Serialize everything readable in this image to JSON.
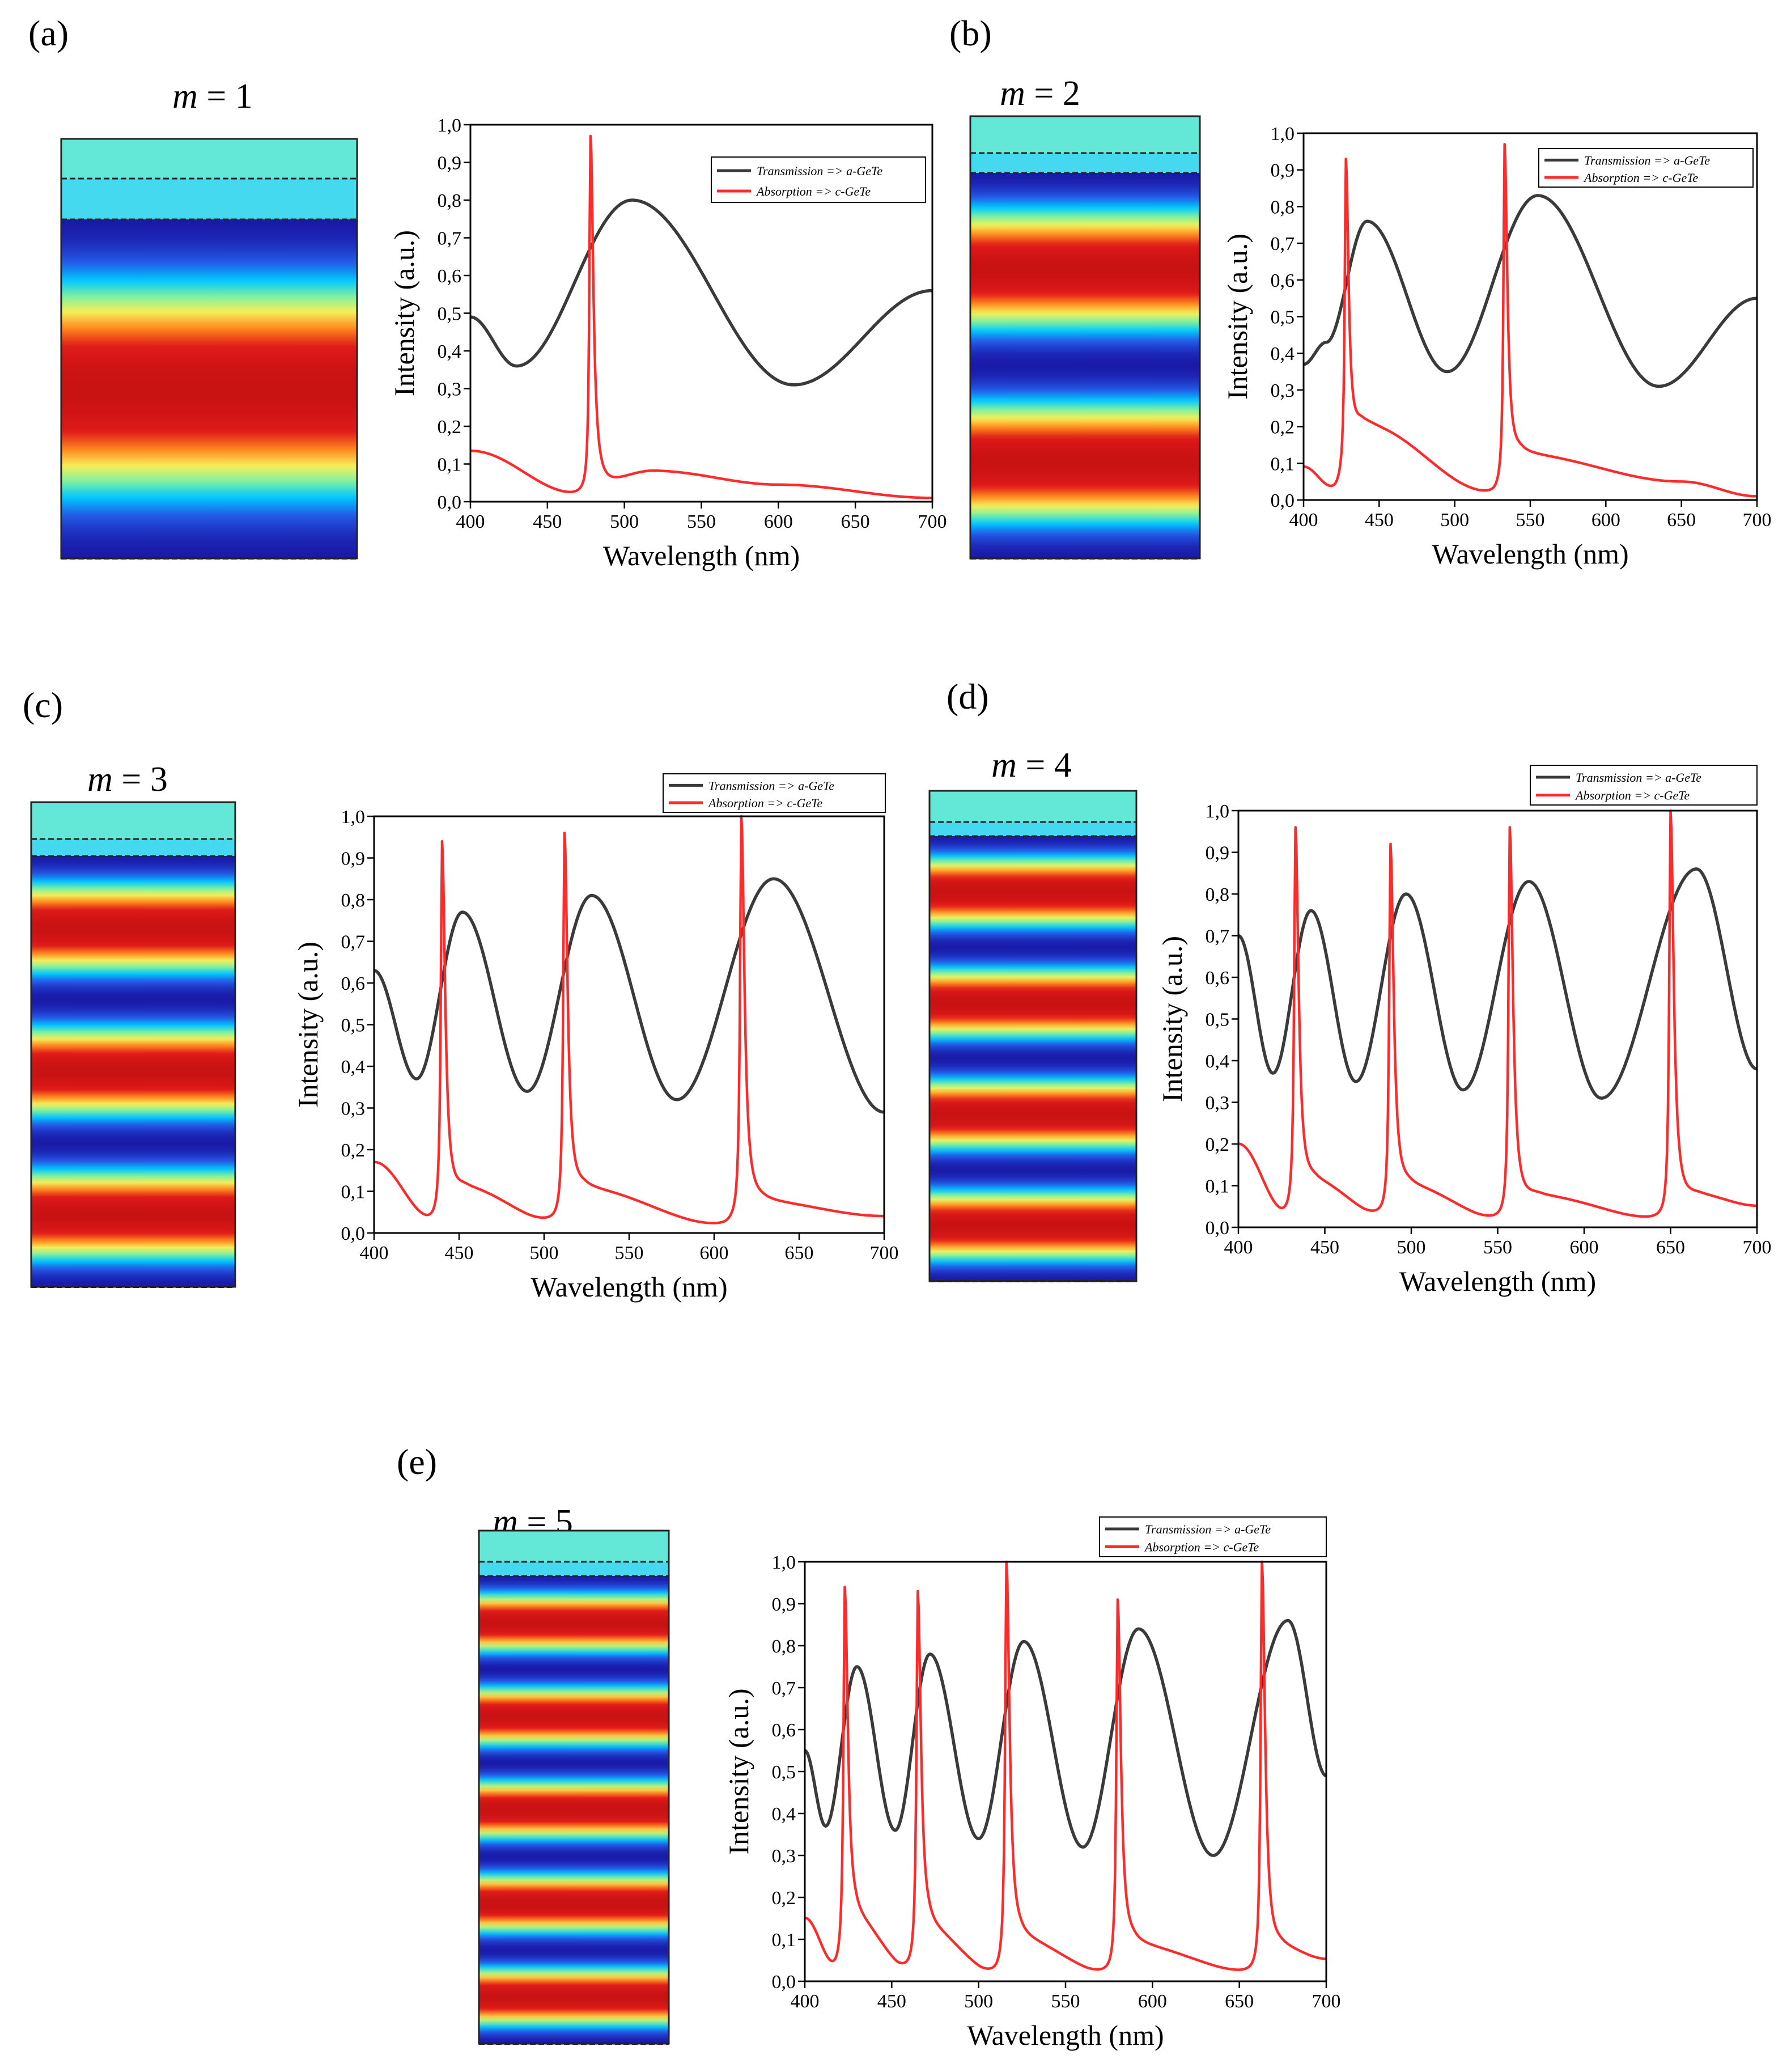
{
  "figure": {
    "description_free": true,
    "field_colormap": [
      "#1a1aa8",
      "#2457e6",
      "#00c8ff",
      "#7ff0a0",
      "#f6f05a",
      "#ff8a1e",
      "#e01a1a",
      "#c91212"
    ]
  },
  "panels": [
    {
      "letter": "(a)",
      "mode_prefix": "m",
      "mode_eq": " = 1"
    },
    {
      "letter": "(b)",
      "mode_prefix": "m",
      "mode_eq": " = 2"
    },
    {
      "letter": "(c)",
      "mode_prefix": "m",
      "mode_eq": " = 3"
    },
    {
      "letter": "(d)",
      "mode_prefix": "m",
      "mode_eq": " = 4"
    },
    {
      "letter": "(e)",
      "mode_prefix": "m",
      "mode_eq": " = 5"
    }
  ],
  "colors": {
    "transmission": "#3a3a3a",
    "absorption": "#ff2a2a",
    "frame": "#333333"
  },
  "chart_data": [
    {
      "type": "line",
      "panel": "(a)",
      "mode": 1,
      "xlabel": "Wavelength (nm)",
      "ylabel": "Intensity (a.u.)",
      "xlim": [
        400,
        700
      ],
      "ylim": [
        0,
        1
      ],
      "xticks": [
        "400",
        "450",
        "500",
        "550",
        "600",
        "650",
        "700"
      ],
      "yticks": [
        "0,0",
        "0,1",
        "0,2",
        "0,3",
        "0,4",
        "0,5",
        "0,6",
        "0,7",
        "0,8",
        "0,9",
        "1,0"
      ],
      "series": [
        {
          "name": "Transmission",
          "legend": "Transmission => a-GeTe",
          "color": "#3a3a3a",
          "base": [
            [
              400,
              0.49
            ],
            [
              430,
              0.36
            ],
            [
              505,
              0.8
            ],
            [
              610,
              0.31
            ],
            [
              700,
              0.56
            ]
          ]
        },
        {
          "name": "Absorption",
          "legend": "Absorption => c-GeTe",
          "color": "#ff2a2a",
          "base": [
            [
              400,
              0.135
            ],
            [
              470,
              0.02
            ],
            [
              520,
              0.08
            ],
            [
              600,
              0.045
            ],
            [
              700,
              0.01
            ]
          ],
          "peaks": [
            [
              478,
              0.97
            ]
          ]
        }
      ]
    },
    {
      "type": "line",
      "panel": "(b)",
      "mode": 2,
      "xlabel": "Wavelength (nm)",
      "ylabel": "Intensity (a.u.)",
      "xlim": [
        400,
        700
      ],
      "ylim": [
        0,
        1
      ],
      "xticks": [
        "400",
        "450",
        "500",
        "550",
        "600",
        "650",
        "700"
      ],
      "yticks": [
        "0,0",
        "0,1",
        "0,2",
        "0,3",
        "0,4",
        "0,5",
        "0,6",
        "0,7",
        "0,8",
        "0,9",
        "1,0"
      ],
      "series": [
        {
          "name": "Transmission",
          "legend": "Transmission => a-GeTe",
          "color": "#3a3a3a",
          "base": [
            [
              400,
              0.37
            ],
            [
              415,
              0.43
            ],
            [
              442,
              0.76
            ],
            [
              495,
              0.35
            ],
            [
              555,
              0.83
            ],
            [
              635,
              0.31
            ],
            [
              700,
              0.55
            ]
          ]
        },
        {
          "name": "Absorption",
          "legend": "Absorption => c-GeTe",
          "color": "#ff2a2a",
          "base": [
            [
              400,
              0.09
            ],
            [
              420,
              0.03
            ],
            [
              440,
              0.2
            ],
            [
              525,
              0.02
            ],
            [
              545,
              0.12
            ],
            [
              650,
              0.05
            ],
            [
              700,
              0.01
            ]
          ],
          "peaks": [
            [
              428,
              0.93
            ],
            [
              533,
              0.97
            ]
          ]
        }
      ]
    },
    {
      "type": "line",
      "panel": "(c)",
      "mode": 3,
      "xlabel": "Wavelength (nm)",
      "ylabel": "Intensity (a.u.)",
      "xlim": [
        400,
        700
      ],
      "ylim": [
        0,
        1
      ],
      "xticks": [
        "400",
        "450",
        "500",
        "550",
        "600",
        "650",
        "700"
      ],
      "yticks": [
        "0,0",
        "0,1",
        "0,2",
        "0,3",
        "0,4",
        "0,5",
        "0,6",
        "0,7",
        "0,8",
        "0,9",
        "1,0"
      ],
      "series": [
        {
          "name": "Transmission",
          "legend": "Transmission => a-GeTe",
          "color": "#3a3a3a",
          "base": [
            [
              400,
              0.63
            ],
            [
              425,
              0.37
            ],
            [
              452,
              0.77
            ],
            [
              490,
              0.34
            ],
            [
              528,
              0.81
            ],
            [
              578,
              0.32
            ],
            [
              635,
              0.85
            ],
            [
              700,
              0.29
            ]
          ]
        },
        {
          "name": "Absorption",
          "legend": "Absorption => c-GeTe",
          "color": "#ff2a2a",
          "base": [
            [
              400,
              0.17
            ],
            [
              435,
              0.03
            ],
            [
              455,
              0.1
            ],
            [
              505,
              0.03
            ],
            [
              525,
              0.1
            ],
            [
              605,
              0.02
            ],
            [
              630,
              0.07
            ],
            [
              700,
              0.04
            ]
          ],
          "peaks": [
            [
              440,
              0.94
            ],
            [
              512,
              0.96
            ],
            [
              616,
              1.0
            ]
          ]
        }
      ]
    },
    {
      "type": "line",
      "panel": "(d)",
      "mode": 4,
      "xlabel": "Wavelength (nm)",
      "ylabel": "Intensity (a.u.)",
      "xlim": [
        400,
        700
      ],
      "ylim": [
        0,
        1
      ],
      "xticks": [
        "400",
        "450",
        "500",
        "550",
        "600",
        "650",
        "700"
      ],
      "yticks": [
        "0,0",
        "0,1",
        "0,2",
        "0,3",
        "0,4",
        "0,5",
        "0,6",
        "0,7",
        "0,8",
        "0,9",
        "1,0"
      ],
      "series": [
        {
          "name": "Transmission",
          "legend": "Transmission => a-GeTe",
          "color": "#3a3a3a",
          "base": [
            [
              400,
              0.7
            ],
            [
              420,
              0.37
            ],
            [
              442,
              0.76
            ],
            [
              468,
              0.35
            ],
            [
              497,
              0.8
            ],
            [
              530,
              0.33
            ],
            [
              568,
              0.83
            ],
            [
              610,
              0.31
            ],
            [
              665,
              0.86
            ],
            [
              700,
              0.38
            ]
          ]
        },
        {
          "name": "Absorption",
          "legend": "Absorption => c-GeTe",
          "color": "#ff2a2a",
          "base": [
            [
              400,
              0.2
            ],
            [
              428,
              0.03
            ],
            [
              445,
              0.1
            ],
            [
              483,
              0.03
            ],
            [
              500,
              0.09
            ],
            [
              552,
              0.02
            ],
            [
              575,
              0.07
            ],
            [
              645,
              0.02
            ],
            [
              668,
              0.07
            ],
            [
              700,
              0.05
            ]
          ],
          "peaks": [
            [
              433,
              0.96
            ],
            [
              488,
              0.92
            ],
            [
              557,
              0.96
            ],
            [
              650,
              1.0
            ]
          ]
        }
      ]
    },
    {
      "type": "line",
      "panel": "(e)",
      "mode": 5,
      "xlabel": "Wavelength (nm)",
      "ylabel": "Intensity (a.u.)",
      "xlim": [
        400,
        700
      ],
      "ylim": [
        0,
        1
      ],
      "xticks": [
        "400",
        "450",
        "500",
        "550",
        "600",
        "650",
        "700"
      ],
      "yticks": [
        "0,0",
        "0,1",
        "0,2",
        "0,3",
        "0,4",
        "0,5",
        "0,6",
        "0,7",
        "0,8",
        "0,9",
        "1,0"
      ],
      "series": [
        {
          "name": "Transmission",
          "legend": "Transmission => a-GeTe",
          "color": "#3a3a3a",
          "base": [
            [
              400,
              0.55
            ],
            [
              412,
              0.37
            ],
            [
              430,
              0.75
            ],
            [
              452,
              0.36
            ],
            [
              472,
              0.78
            ],
            [
              500,
              0.34
            ],
            [
              526,
              0.81
            ],
            [
              560,
              0.32
            ],
            [
              592,
              0.84
            ],
            [
              635,
              0.3
            ],
            [
              678,
              0.86
            ],
            [
              700,
              0.49
            ]
          ]
        },
        {
          "name": "Absorption",
          "legend": "Absorption => c-GeTe",
          "color": "#ff2a2a",
          "base": [
            [
              400,
              0.15
            ],
            [
              418,
              0.03
            ],
            [
              430,
              0.13
            ],
            [
              460,
              0.03
            ],
            [
              472,
              0.11
            ],
            [
              510,
              0.02
            ],
            [
              525,
              0.09
            ],
            [
              575,
              0.02
            ],
            [
              590,
              0.08
            ],
            [
              660,
              0.02
            ],
            [
              675,
              0.07
            ],
            [
              700,
              0.05
            ]
          ],
          "peaks": [
            [
              423,
              0.94
            ],
            [
              465,
              0.93
            ],
            [
              516,
              1.0
            ],
            [
              580,
              0.91
            ],
            [
              663,
              1.0
            ]
          ]
        }
      ]
    }
  ]
}
